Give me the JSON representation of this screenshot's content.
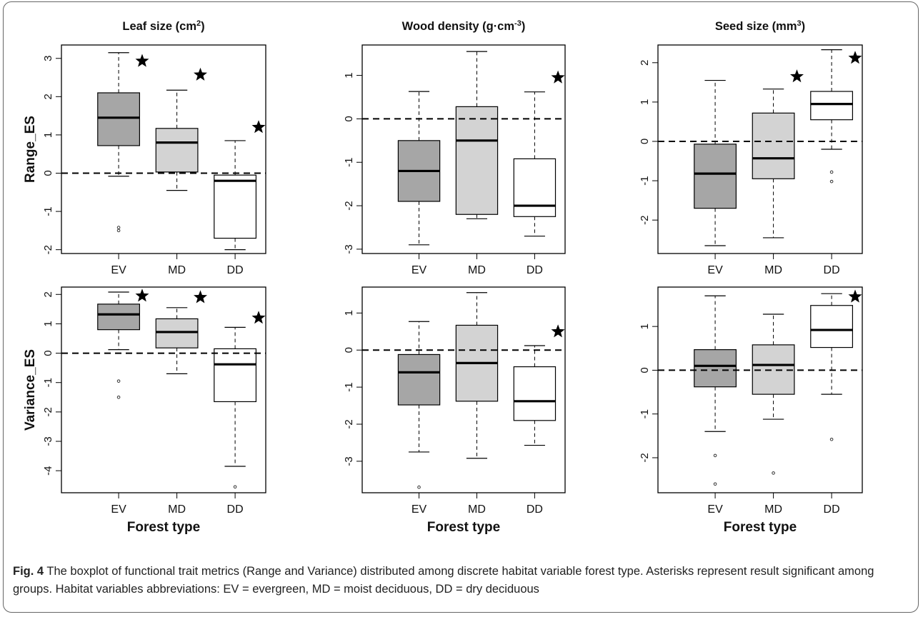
{
  "column_titles": [
    {
      "base": "Leaf size (cm",
      "sup": "2",
      "tail": ")"
    },
    {
      "base": "Wood density (g·cm",
      "sup": "-3",
      "tail": ")"
    },
    {
      "base": "Seed size (mm",
      "sup": "3",
      "tail": ")"
    }
  ],
  "row_labels": [
    "Range_ES",
    "Variance_ES"
  ],
  "xlabel": "Forest type",
  "caption": {
    "label": "Fig. 4",
    "text": "The boxplot of functional trait metrics (Range and Variance) distributed among discrete habitat variable forest type. Asterisks represent result significant among groups. Habitat variables abbreviations: EV = evergreen, MD = moist deciduous, DD = dry deciduous"
  },
  "colors": {
    "EV": "#a6a6a6",
    "MD": "#d3d3d3",
    "DD": "#ffffff",
    "star": "#000000"
  },
  "chart_data": [
    {
      "type": "boxplot",
      "row": "Range_ES",
      "trait": "Leaf size",
      "categories": [
        "EV",
        "MD",
        "DD"
      ],
      "ylim": [
        -2.1,
        3.35
      ],
      "yticks": [
        -2,
        -1,
        0,
        1,
        2,
        3
      ],
      "reference_line": 0,
      "boxes": [
        {
          "whisker_low": -0.08,
          "q1": 0.72,
          "median": 1.45,
          "q3": 2.1,
          "whisker_high": 3.15,
          "outliers": [
            -1.42,
            -1.5
          ],
          "significant": true,
          "star_y": 2.93
        },
        {
          "whisker_low": -0.45,
          "q1": 0.03,
          "median": 0.8,
          "q3": 1.17,
          "whisker_high": 2.17,
          "outliers": [],
          "significant": true,
          "star_y": 2.57
        },
        {
          "whisker_low": -2.0,
          "q1": -1.7,
          "median": -0.2,
          "q3": -0.05,
          "whisker_high": 0.85,
          "outliers": [],
          "significant": true,
          "star_y": 1.2
        }
      ]
    },
    {
      "type": "boxplot",
      "row": "Range_ES",
      "trait": "Wood density",
      "categories": [
        "EV",
        "MD",
        "DD"
      ],
      "ylim": [
        -3.1,
        1.7
      ],
      "yticks": [
        -3,
        -2,
        -1,
        0,
        1
      ],
      "reference_line": 0,
      "boxes": [
        {
          "whisker_low": -2.9,
          "q1": -1.9,
          "median": -1.2,
          "q3": -0.5,
          "whisker_high": 0.63,
          "outliers": [],
          "significant": false
        },
        {
          "whisker_low": -2.3,
          "q1": -2.2,
          "median": -0.5,
          "q3": 0.28,
          "whisker_high": 1.55,
          "outliers": [],
          "significant": false
        },
        {
          "whisker_low": -2.7,
          "q1": -2.25,
          "median": -2.0,
          "q3": -0.92,
          "whisker_high": 0.62,
          "outliers": [],
          "significant": true,
          "star_y": 0.95
        }
      ]
    },
    {
      "type": "boxplot",
      "row": "Range_ES",
      "trait": "Seed size",
      "categories": [
        "EV",
        "MD",
        "DD"
      ],
      "ylim": [
        -2.85,
        2.45
      ],
      "yticks": [
        -2,
        -1,
        0,
        1,
        2
      ],
      "reference_line": 0,
      "boxes": [
        {
          "whisker_low": -2.65,
          "q1": -1.7,
          "median": -0.82,
          "q3": -0.07,
          "whisker_high": 1.55,
          "outliers": [],
          "significant": false
        },
        {
          "whisker_low": -2.45,
          "q1": -0.95,
          "median": -0.43,
          "q3": 0.72,
          "whisker_high": 1.33,
          "outliers": [],
          "significant": true,
          "star_y": 1.65
        },
        {
          "whisker_low": -0.2,
          "q1": 0.55,
          "median": 0.95,
          "q3": 1.27,
          "whisker_high": 2.33,
          "outliers": [
            -0.78,
            -1.02
          ],
          "significant": true,
          "star_y": 2.12
        }
      ]
    },
    {
      "type": "boxplot",
      "row": "Variance_ES",
      "trait": "Leaf size",
      "categories": [
        "EV",
        "MD",
        "DD"
      ],
      "ylim": [
        -4.75,
        2.25
      ],
      "yticks": [
        -4,
        -3,
        -2,
        -1,
        0,
        1,
        2
      ],
      "reference_line": 0,
      "boxes": [
        {
          "whisker_low": 0.12,
          "q1": 0.8,
          "median": 1.32,
          "q3": 1.67,
          "whisker_high": 2.08,
          "outliers": [
            -0.95,
            -1.5
          ],
          "significant": true,
          "star_y": 1.95
        },
        {
          "whisker_low": -0.7,
          "q1": 0.18,
          "median": 0.72,
          "q3": 1.17,
          "whisker_high": 1.55,
          "outliers": [],
          "significant": true,
          "star_y": 1.9
        },
        {
          "whisker_low": -3.85,
          "q1": -1.65,
          "median": -0.38,
          "q3": 0.15,
          "whisker_high": 0.88,
          "outliers": [
            -4.55
          ],
          "significant": true,
          "star_y": 1.2
        }
      ]
    },
    {
      "type": "boxplot",
      "row": "Variance_ES",
      "trait": "Wood density",
      "categories": [
        "EV",
        "MD",
        "DD"
      ],
      "ylim": [
        -3.85,
        1.7
      ],
      "yticks": [
        -3,
        -2,
        -1,
        0,
        1
      ],
      "reference_line": 0,
      "boxes": [
        {
          "whisker_low": -2.75,
          "q1": -1.48,
          "median": -0.6,
          "q3": -0.12,
          "whisker_high": 0.77,
          "outliers": [
            -3.7
          ],
          "significant": false
        },
        {
          "whisker_low": -2.92,
          "q1": -1.38,
          "median": -0.35,
          "q3": 0.67,
          "whisker_high": 1.55,
          "outliers": [],
          "significant": false
        },
        {
          "whisker_low": -2.57,
          "q1": -1.9,
          "median": -1.38,
          "q3": -0.45,
          "whisker_high": 0.12,
          "outliers": [],
          "significant": true,
          "star_y": 0.5
        }
      ]
    },
    {
      "type": "boxplot",
      "row": "Variance_ES",
      "trait": "Seed size",
      "categories": [
        "EV",
        "MD",
        "DD"
      ],
      "ylim": [
        -2.8,
        1.9
      ],
      "yticks": [
        -2,
        -1,
        0,
        1
      ],
      "reference_line": 0,
      "boxes": [
        {
          "whisker_low": -1.4,
          "q1": -0.38,
          "median": 0.1,
          "q3": 0.47,
          "whisker_high": 1.7,
          "outliers": [
            -1.95,
            -2.6
          ],
          "significant": false
        },
        {
          "whisker_low": -1.12,
          "q1": -0.55,
          "median": 0.12,
          "q3": 0.58,
          "whisker_high": 1.28,
          "outliers": [
            -2.35
          ],
          "significant": false
        },
        {
          "whisker_low": -0.55,
          "q1": 0.52,
          "median": 0.92,
          "q3": 1.48,
          "whisker_high": 1.75,
          "outliers": [
            -1.58
          ],
          "significant": true,
          "star_y": 1.68
        }
      ]
    }
  ]
}
